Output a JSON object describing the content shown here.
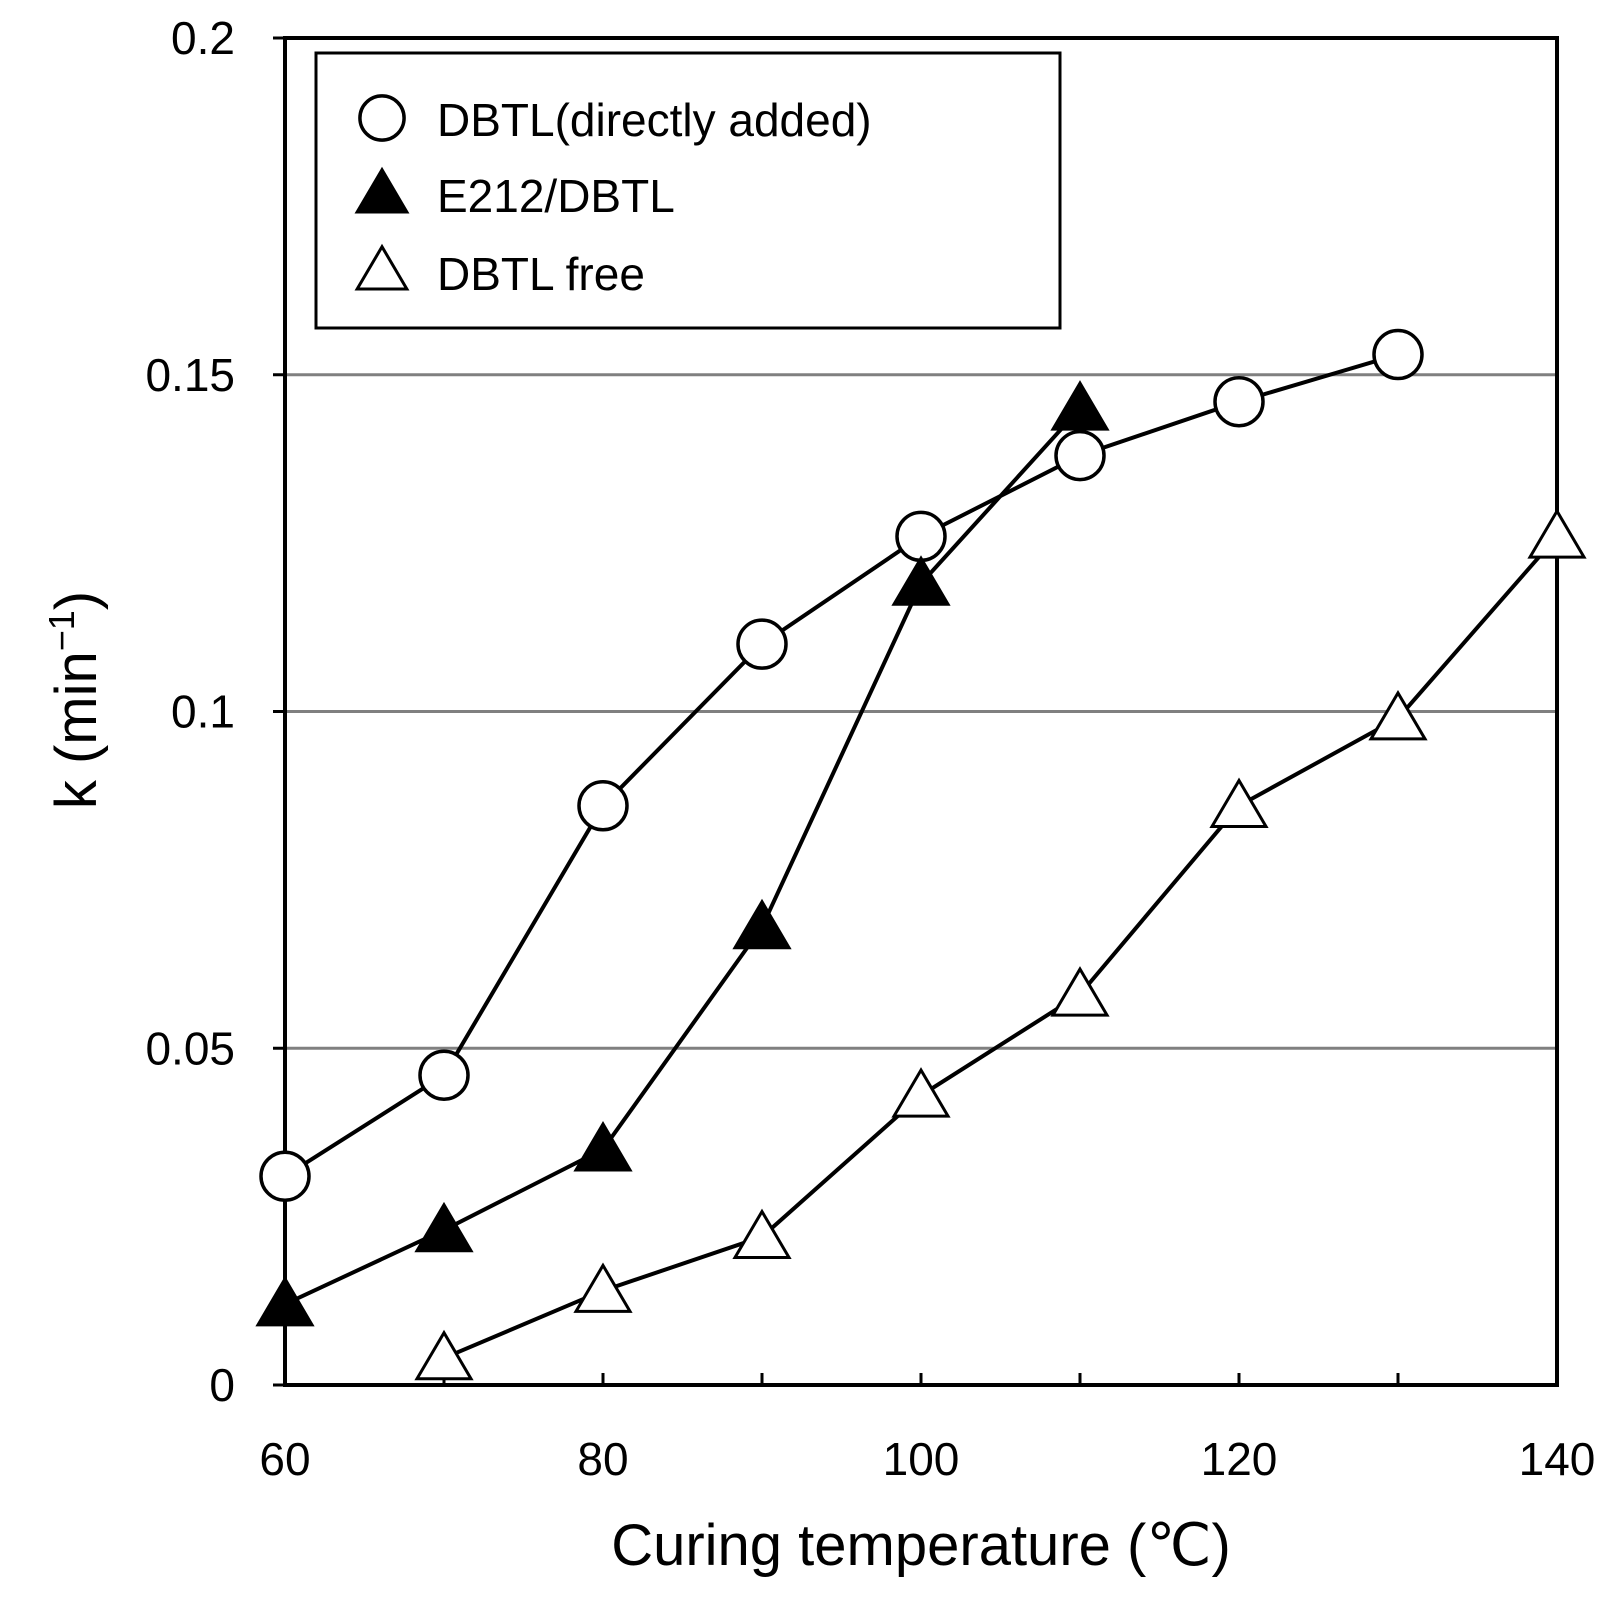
{
  "chart_data": {
    "type": "line",
    "title": "",
    "xlabel": "Curing temperature (℃)",
    "ylabel_main": "k (min",
    "ylabel_sup": "−1",
    "ylabel_close": ")",
    "xlim": [
      60,
      140
    ],
    "ylim": [
      0,
      0.2
    ],
    "x_ticks": [
      60,
      80,
      100,
      120,
      140
    ],
    "x_tick_labels": [
      "60",
      "80",
      "100",
      "120",
      "140"
    ],
    "x_minor_ticks": [
      70,
      90,
      110,
      130
    ],
    "y_ticks": [
      0,
      0.05,
      0.1,
      0.15,
      0.2
    ],
    "y_tick_labels": [
      "0",
      "0.05",
      "0.1",
      "0.15",
      "0.2"
    ],
    "gridlines_y": [
      0.05,
      0.1,
      0.15
    ],
    "legend_position": "top-left",
    "series": [
      {
        "name": "DBTL(directly added)",
        "marker": "open-circle",
        "x": [
          60,
          70,
          80,
          90,
          100,
          110,
          120,
          130
        ],
        "y": [
          0.031,
          0.046,
          0.086,
          0.11,
          0.126,
          0.138,
          0.146,
          0.153
        ]
      },
      {
        "name": "E212/DBTL",
        "marker": "filled-triangle",
        "x": [
          60,
          70,
          80,
          90,
          100,
          110
        ],
        "y": [
          0.012,
          0.023,
          0.035,
          0.068,
          0.119,
          0.145
        ]
      },
      {
        "name": "DBTL free",
        "marker": "open-triangle",
        "x": [
          70,
          80,
          90,
          100,
          110,
          120,
          130,
          140
        ],
        "y": [
          0.004,
          0.014,
          0.022,
          0.043,
          0.058,
          0.086,
          0.099,
          0.126
        ]
      }
    ]
  }
}
